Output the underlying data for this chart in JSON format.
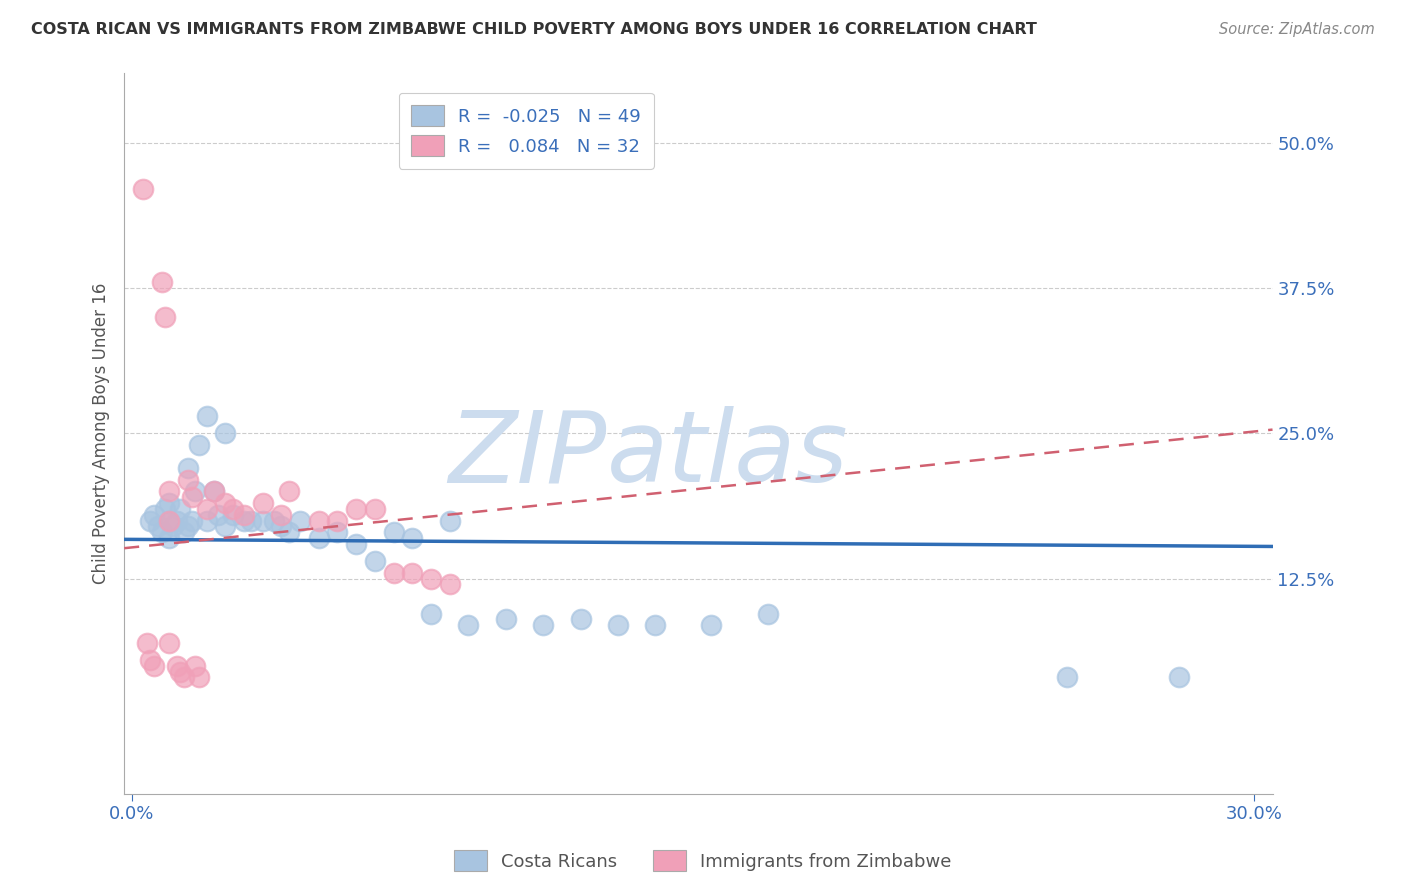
{
  "title": "COSTA RICAN VS IMMIGRANTS FROM ZIMBABWE CHILD POVERTY AMONG BOYS UNDER 16 CORRELATION CHART",
  "source": "Source: ZipAtlas.com",
  "ylabel": "Child Poverty Among Boys Under 16",
  "xlabel": "",
  "xlim": [
    -0.002,
    0.305
  ],
  "ylim": [
    -0.06,
    0.56
  ],
  "yticks": [
    0.125,
    0.25,
    0.375,
    0.5
  ],
  "ytick_labels": [
    "12.5%",
    "25.0%",
    "37.5%",
    "50.0%"
  ],
  "xticks": [
    0.0,
    0.3
  ],
  "xtick_labels": [
    "0.0%",
    "30.0%"
  ],
  "blue_R": -0.025,
  "blue_N": 49,
  "pink_R": 0.084,
  "pink_N": 32,
  "blue_color": "#a8c4e0",
  "pink_color": "#f0a0b8",
  "blue_line_color": "#2f6db5",
  "pink_line_color": "#d06070",
  "watermark_zip": "ZIP",
  "watermark_atlas": "atlas",
  "watermark_color": "#ccdcee",
  "legend_label_blue": "Costa Ricans",
  "legend_label_pink": "Immigrants from Zimbabwe",
  "blue_scatter_x": [
    0.005,
    0.006,
    0.007,
    0.008,
    0.009,
    0.01,
    0.01,
    0.01,
    0.011,
    0.012,
    0.013,
    0.014,
    0.015,
    0.015,
    0.016,
    0.017,
    0.018,
    0.02,
    0.02,
    0.022,
    0.023,
    0.025,
    0.025,
    0.027,
    0.03,
    0.032,
    0.035,
    0.038,
    0.04,
    0.042,
    0.045,
    0.05,
    0.055,
    0.06,
    0.065,
    0.07,
    0.075,
    0.08,
    0.085,
    0.09,
    0.1,
    0.11,
    0.12,
    0.13,
    0.14,
    0.155,
    0.17,
    0.25,
    0.28
  ],
  "blue_scatter_y": [
    0.175,
    0.18,
    0.17,
    0.165,
    0.185,
    0.175,
    0.16,
    0.19,
    0.17,
    0.175,
    0.185,
    0.165,
    0.22,
    0.17,
    0.175,
    0.2,
    0.24,
    0.175,
    0.265,
    0.2,
    0.18,
    0.17,
    0.25,
    0.18,
    0.175,
    0.175,
    0.175,
    0.175,
    0.17,
    0.165,
    0.175,
    0.16,
    0.165,
    0.155,
    0.14,
    0.165,
    0.16,
    0.095,
    0.175,
    0.085,
    0.09,
    0.085,
    0.09,
    0.085,
    0.085,
    0.085,
    0.095,
    0.04,
    0.04
  ],
  "pink_scatter_x": [
    0.003,
    0.004,
    0.005,
    0.006,
    0.008,
    0.009,
    0.01,
    0.01,
    0.01,
    0.012,
    0.013,
    0.014,
    0.015,
    0.016,
    0.017,
    0.018,
    0.02,
    0.022,
    0.025,
    0.027,
    0.03,
    0.035,
    0.04,
    0.042,
    0.05,
    0.055,
    0.06,
    0.065,
    0.07,
    0.075,
    0.08,
    0.085
  ],
  "pink_scatter_y": [
    0.46,
    0.07,
    0.055,
    0.05,
    0.38,
    0.35,
    0.2,
    0.175,
    0.07,
    0.05,
    0.045,
    0.04,
    0.21,
    0.195,
    0.05,
    0.04,
    0.185,
    0.2,
    0.19,
    0.185,
    0.18,
    0.19,
    0.18,
    0.2,
    0.175,
    0.175,
    0.185,
    0.185,
    0.13,
    0.13,
    0.125,
    0.12
  ]
}
